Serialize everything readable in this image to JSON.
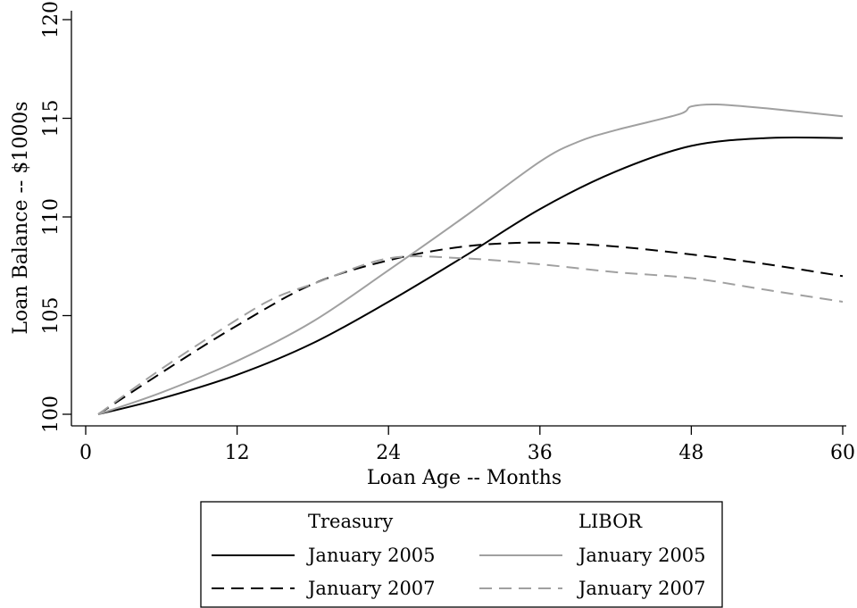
{
  "chart_data": {
    "type": "line",
    "title": "",
    "xlabel": "Loan Age -- Months",
    "ylabel": "Loan Balance -- $1000s",
    "xlim": [
      0,
      60
    ],
    "ylim": [
      100,
      120
    ],
    "xticks": [
      0,
      12,
      24,
      36,
      48,
      60
    ],
    "yticks": [
      100,
      105,
      110,
      115,
      120
    ],
    "grid": false,
    "legend": {
      "placement": "bottom",
      "groups": [
        {
          "heading": "Treasury",
          "entries": [
            "January 2005",
            "January 2007"
          ]
        },
        {
          "heading": "LIBOR",
          "entries": [
            "January 2005",
            "January 2007"
          ]
        }
      ]
    },
    "series": [
      {
        "name": "Treasury January 2005",
        "color": "#000000",
        "dash": "solid",
        "x": [
          1,
          6,
          12,
          18,
          24,
          30,
          36,
          42,
          48,
          54,
          60
        ],
        "y": [
          100,
          100.8,
          102.0,
          103.6,
          105.7,
          108.0,
          110.4,
          112.3,
          113.6,
          114.0,
          114.0
        ]
      },
      {
        "name": "Treasury January 2007",
        "color": "#000000",
        "dash": "dashed",
        "x": [
          1,
          6,
          12,
          18,
          24,
          30,
          36,
          42,
          48,
          54,
          60
        ],
        "y": [
          100,
          102.1,
          104.5,
          106.6,
          107.8,
          108.5,
          108.7,
          108.5,
          108.1,
          107.6,
          107.0
        ]
      },
      {
        "name": "LIBOR January 2005",
        "color": "#a0a0a0",
        "dash": "solid",
        "x": [
          1,
          6,
          12,
          18,
          24,
          30,
          36,
          39,
          42,
          47,
          48,
          50,
          54,
          60
        ],
        "y": [
          100,
          101.1,
          102.7,
          104.7,
          107.3,
          110.0,
          112.8,
          113.8,
          114.4,
          115.2,
          115.6,
          115.7,
          115.5,
          115.1
        ]
      },
      {
        "name": "LIBOR January 2007",
        "color": "#a0a0a0",
        "dash": "dashed",
        "x": [
          1,
          6,
          12,
          15,
          18,
          24,
          30,
          36,
          42,
          48,
          54,
          60
        ],
        "y": [
          100,
          102.3,
          104.8,
          105.9,
          106.6,
          107.9,
          107.9,
          107.6,
          107.2,
          106.9,
          106.3,
          105.7
        ]
      }
    ]
  }
}
